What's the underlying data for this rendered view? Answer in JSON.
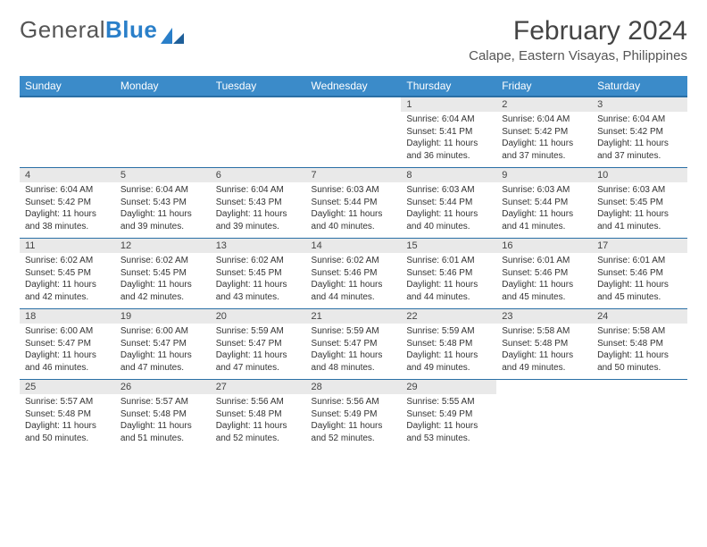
{
  "logo": {
    "text1": "General",
    "text2": "Blue"
  },
  "title": "February 2024",
  "location": "Calape, Eastern Visayas, Philippines",
  "header_bg": "#3b8bc9",
  "header_border": "#2a6fa5",
  "daynum_bg": "#e9e9e9",
  "weekdays": [
    "Sunday",
    "Monday",
    "Tuesday",
    "Wednesday",
    "Thursday",
    "Friday",
    "Saturday"
  ],
  "grid": [
    [
      null,
      null,
      null,
      null,
      {
        "n": "1",
        "sr": "Sunrise: 6:04 AM",
        "ss": "Sunset: 5:41 PM",
        "dl": "Daylight: 11 hours and 36 minutes."
      },
      {
        "n": "2",
        "sr": "Sunrise: 6:04 AM",
        "ss": "Sunset: 5:42 PM",
        "dl": "Daylight: 11 hours and 37 minutes."
      },
      {
        "n": "3",
        "sr": "Sunrise: 6:04 AM",
        "ss": "Sunset: 5:42 PM",
        "dl": "Daylight: 11 hours and 37 minutes."
      }
    ],
    [
      {
        "n": "4",
        "sr": "Sunrise: 6:04 AM",
        "ss": "Sunset: 5:42 PM",
        "dl": "Daylight: 11 hours and 38 minutes."
      },
      {
        "n": "5",
        "sr": "Sunrise: 6:04 AM",
        "ss": "Sunset: 5:43 PM",
        "dl": "Daylight: 11 hours and 39 minutes."
      },
      {
        "n": "6",
        "sr": "Sunrise: 6:04 AM",
        "ss": "Sunset: 5:43 PM",
        "dl": "Daylight: 11 hours and 39 minutes."
      },
      {
        "n": "7",
        "sr": "Sunrise: 6:03 AM",
        "ss": "Sunset: 5:44 PM",
        "dl": "Daylight: 11 hours and 40 minutes."
      },
      {
        "n": "8",
        "sr": "Sunrise: 6:03 AM",
        "ss": "Sunset: 5:44 PM",
        "dl": "Daylight: 11 hours and 40 minutes."
      },
      {
        "n": "9",
        "sr": "Sunrise: 6:03 AM",
        "ss": "Sunset: 5:44 PM",
        "dl": "Daylight: 11 hours and 41 minutes."
      },
      {
        "n": "10",
        "sr": "Sunrise: 6:03 AM",
        "ss": "Sunset: 5:45 PM",
        "dl": "Daylight: 11 hours and 41 minutes."
      }
    ],
    [
      {
        "n": "11",
        "sr": "Sunrise: 6:02 AM",
        "ss": "Sunset: 5:45 PM",
        "dl": "Daylight: 11 hours and 42 minutes."
      },
      {
        "n": "12",
        "sr": "Sunrise: 6:02 AM",
        "ss": "Sunset: 5:45 PM",
        "dl": "Daylight: 11 hours and 42 minutes."
      },
      {
        "n": "13",
        "sr": "Sunrise: 6:02 AM",
        "ss": "Sunset: 5:45 PM",
        "dl": "Daylight: 11 hours and 43 minutes."
      },
      {
        "n": "14",
        "sr": "Sunrise: 6:02 AM",
        "ss": "Sunset: 5:46 PM",
        "dl": "Daylight: 11 hours and 44 minutes."
      },
      {
        "n": "15",
        "sr": "Sunrise: 6:01 AM",
        "ss": "Sunset: 5:46 PM",
        "dl": "Daylight: 11 hours and 44 minutes."
      },
      {
        "n": "16",
        "sr": "Sunrise: 6:01 AM",
        "ss": "Sunset: 5:46 PM",
        "dl": "Daylight: 11 hours and 45 minutes."
      },
      {
        "n": "17",
        "sr": "Sunrise: 6:01 AM",
        "ss": "Sunset: 5:46 PM",
        "dl": "Daylight: 11 hours and 45 minutes."
      }
    ],
    [
      {
        "n": "18",
        "sr": "Sunrise: 6:00 AM",
        "ss": "Sunset: 5:47 PM",
        "dl": "Daylight: 11 hours and 46 minutes."
      },
      {
        "n": "19",
        "sr": "Sunrise: 6:00 AM",
        "ss": "Sunset: 5:47 PM",
        "dl": "Daylight: 11 hours and 47 minutes."
      },
      {
        "n": "20",
        "sr": "Sunrise: 5:59 AM",
        "ss": "Sunset: 5:47 PM",
        "dl": "Daylight: 11 hours and 47 minutes."
      },
      {
        "n": "21",
        "sr": "Sunrise: 5:59 AM",
        "ss": "Sunset: 5:47 PM",
        "dl": "Daylight: 11 hours and 48 minutes."
      },
      {
        "n": "22",
        "sr": "Sunrise: 5:59 AM",
        "ss": "Sunset: 5:48 PM",
        "dl": "Daylight: 11 hours and 49 minutes."
      },
      {
        "n": "23",
        "sr": "Sunrise: 5:58 AM",
        "ss": "Sunset: 5:48 PM",
        "dl": "Daylight: 11 hours and 49 minutes."
      },
      {
        "n": "24",
        "sr": "Sunrise: 5:58 AM",
        "ss": "Sunset: 5:48 PM",
        "dl": "Daylight: 11 hours and 50 minutes."
      }
    ],
    [
      {
        "n": "25",
        "sr": "Sunrise: 5:57 AM",
        "ss": "Sunset: 5:48 PM",
        "dl": "Daylight: 11 hours and 50 minutes."
      },
      {
        "n": "26",
        "sr": "Sunrise: 5:57 AM",
        "ss": "Sunset: 5:48 PM",
        "dl": "Daylight: 11 hours and 51 minutes."
      },
      {
        "n": "27",
        "sr": "Sunrise: 5:56 AM",
        "ss": "Sunset: 5:48 PM",
        "dl": "Daylight: 11 hours and 52 minutes."
      },
      {
        "n": "28",
        "sr": "Sunrise: 5:56 AM",
        "ss": "Sunset: 5:49 PM",
        "dl": "Daylight: 11 hours and 52 minutes."
      },
      {
        "n": "29",
        "sr": "Sunrise: 5:55 AM",
        "ss": "Sunset: 5:49 PM",
        "dl": "Daylight: 11 hours and 53 minutes."
      },
      null,
      null
    ]
  ]
}
